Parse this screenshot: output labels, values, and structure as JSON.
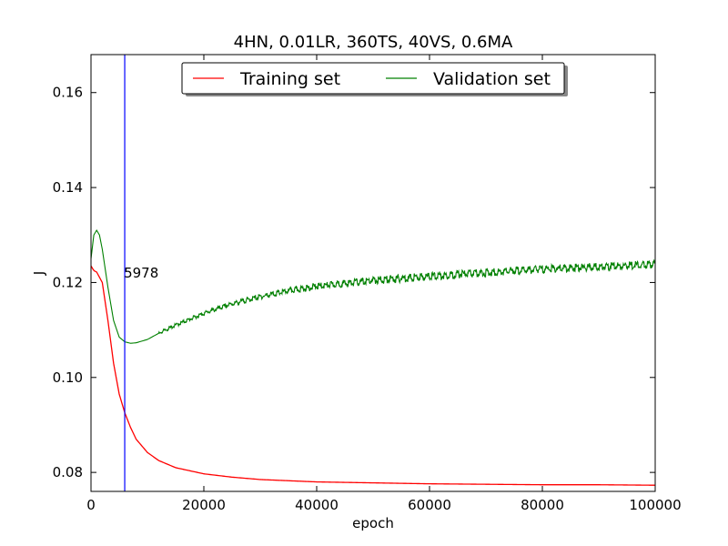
{
  "chart_data": {
    "type": "line",
    "title": "4HN, 0.01LR, 360TS, 40VS, 0.6MA",
    "xlabel": "epoch",
    "ylabel": "J",
    "xlim": [
      0,
      100000
    ],
    "ylim": [
      0.076,
      0.168
    ],
    "x_ticks": [
      0,
      20000,
      40000,
      60000,
      80000,
      100000
    ],
    "x_tick_labels": [
      "0",
      "20000",
      "40000",
      "60000",
      "80000",
      "100000"
    ],
    "y_ticks": [
      0.08,
      0.1,
      0.12,
      0.14,
      0.16
    ],
    "y_tick_labels": [
      "0.08",
      "0.10",
      "0.12",
      "0.14",
      "0.16"
    ],
    "grid": false,
    "legend": {
      "placement": "top-center",
      "columns": 2
    },
    "series": [
      {
        "name": "Training set",
        "color": "#ff0000",
        "x": [
          0,
          500,
          1000,
          2000,
          3000,
          4000,
          5000,
          6000,
          7000,
          8000,
          10000,
          12000,
          15000,
          20000,
          25000,
          30000,
          40000,
          50000,
          60000,
          70000,
          80000,
          90000,
          100000
        ],
        "y": [
          0.1235,
          0.1225,
          0.1222,
          0.12,
          0.112,
          0.103,
          0.0965,
          0.0925,
          0.0895,
          0.087,
          0.0842,
          0.0825,
          0.081,
          0.0797,
          0.079,
          0.0785,
          0.078,
          0.0778,
          0.0776,
          0.0775,
          0.0774,
          0.0774,
          0.0773
        ]
      },
      {
        "name": "Validation set",
        "color": "#008000",
        "x": [
          0,
          500,
          1000,
          1500,
          2000,
          3000,
          4000,
          5000,
          6000,
          7000,
          8000,
          10000,
          12000,
          15000,
          20000,
          25000,
          30000,
          35000,
          40000,
          45000,
          50000,
          60000,
          70000,
          80000,
          90000,
          100000
        ],
        "y": [
          0.125,
          0.13,
          0.131,
          0.13,
          0.127,
          0.119,
          0.112,
          0.1085,
          0.1075,
          0.1072,
          0.1073,
          0.108,
          0.1093,
          0.111,
          0.1135,
          0.1155,
          0.117,
          0.1182,
          0.1192,
          0.1198,
          0.1204,
          0.1213,
          0.1221,
          0.1228,
          0.1233,
          0.1238
        ]
      }
    ],
    "marker_line": {
      "x": 5978,
      "color": "#0000ff",
      "label": "5978"
    }
  }
}
